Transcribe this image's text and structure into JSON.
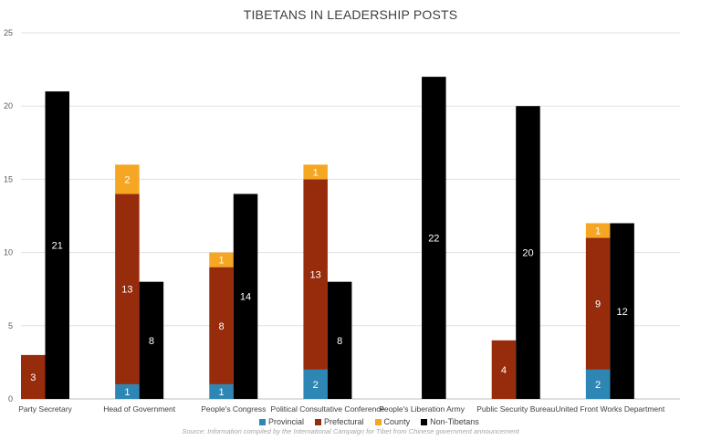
{
  "chart_data": {
    "type": "bar",
    "title": "TIBETANS IN LEADERSHIP POSTS",
    "categories": [
      "Party Secretary",
      "Head of Government",
      "People's Congress",
      "Political Consultative Conference",
      "People's Liberation Army",
      "Public Security Bureau",
      "United Front Works Department"
    ],
    "stacked_series": [
      {
        "name": "Provincial",
        "color": "#2E86B5",
        "values": [
          0,
          1,
          1,
          2,
          0,
          0,
          2
        ]
      },
      {
        "name": "Prefectural",
        "color": "#962C0B",
        "values": [
          3,
          13,
          8,
          13,
          0,
          4,
          9
        ]
      },
      {
        "name": "County",
        "color": "#F5A623",
        "values": [
          0,
          2,
          1,
          1,
          0,
          0,
          1
        ]
      }
    ],
    "separate_series": {
      "name": "Non-Tibetans",
      "color": "#000000",
      "values": [
        21,
        8,
        14,
        8,
        22,
        20,
        12
      ]
    },
    "ylim": [
      0,
      25
    ],
    "yticks": [
      0,
      5,
      10,
      15,
      20,
      25
    ],
    "grid": true,
    "legend_position": "bottom",
    "source": "Source: Information compiled by the International Campaign for Tibet from Chinese government announcement"
  }
}
